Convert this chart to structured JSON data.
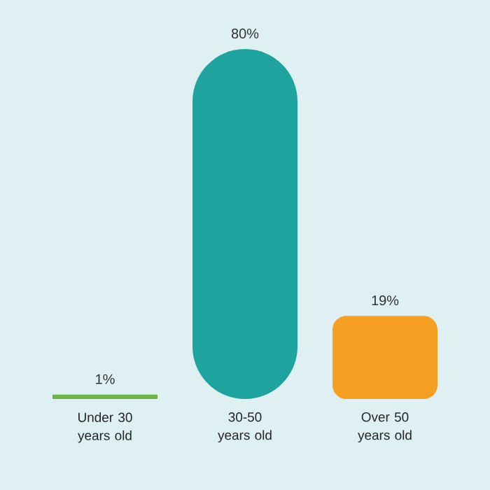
{
  "chart_data": {
    "type": "bar",
    "categories": [
      "Under 30 years old",
      "30-50 years old",
      "Over 50 years old"
    ],
    "values": [
      1,
      80,
      19
    ],
    "colors": [
      "#6bb344",
      "#1fa39f",
      "#f6a023"
    ],
    "value_labels": [
      "1%",
      "80%",
      "19%"
    ]
  }
}
